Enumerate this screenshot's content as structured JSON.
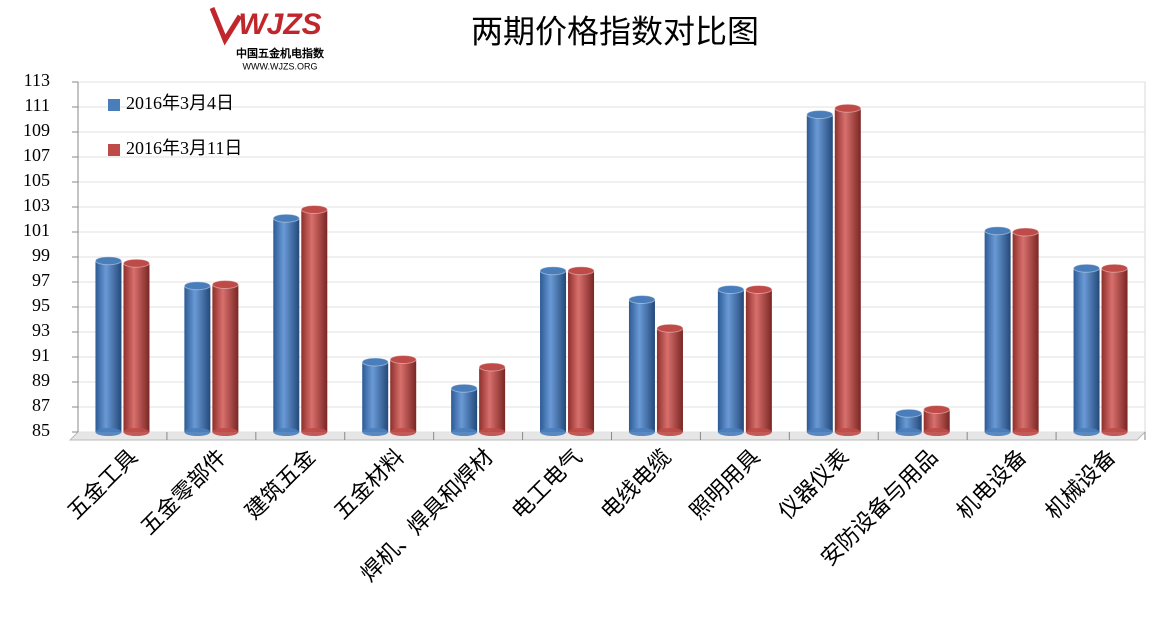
{
  "logo": {
    "mark": "WJZS",
    "name": "中国五金机电指数",
    "url": "WWW.WJZS.ORG"
  },
  "chart_data": {
    "type": "bar",
    "title": "两期价格指数对比图",
    "categories": [
      "五金工具",
      "五金零部件",
      "建筑五金",
      "五金材料",
      "焊机、焊具和焊材",
      "电工电气",
      "电线电缆",
      "照明用具",
      "仪器仪表",
      "安防设备与用品",
      "机电设备",
      "机械设备"
    ],
    "series": [
      {
        "name": "2016年3月4日",
        "color": "#4a7ebb",
        "values": [
          98.7,
          96.7,
          102.1,
          90.6,
          88.5,
          97.9,
          95.6,
          96.4,
          110.4,
          86.5,
          101.1,
          98.1
        ]
      },
      {
        "name": "2016年3月11日",
        "color": "#be4b48",
        "values": [
          98.5,
          96.8,
          102.8,
          90.8,
          90.2,
          97.9,
          93.3,
          96.4,
          110.9,
          86.8,
          101.0,
          98.1
        ]
      }
    ],
    "ylim": [
      85,
      113
    ],
    "yticks": [
      85,
      87,
      89,
      91,
      93,
      95,
      97,
      99,
      101,
      103,
      105,
      107,
      109,
      111,
      113
    ],
    "grid": true,
    "legend": "top-left"
  }
}
